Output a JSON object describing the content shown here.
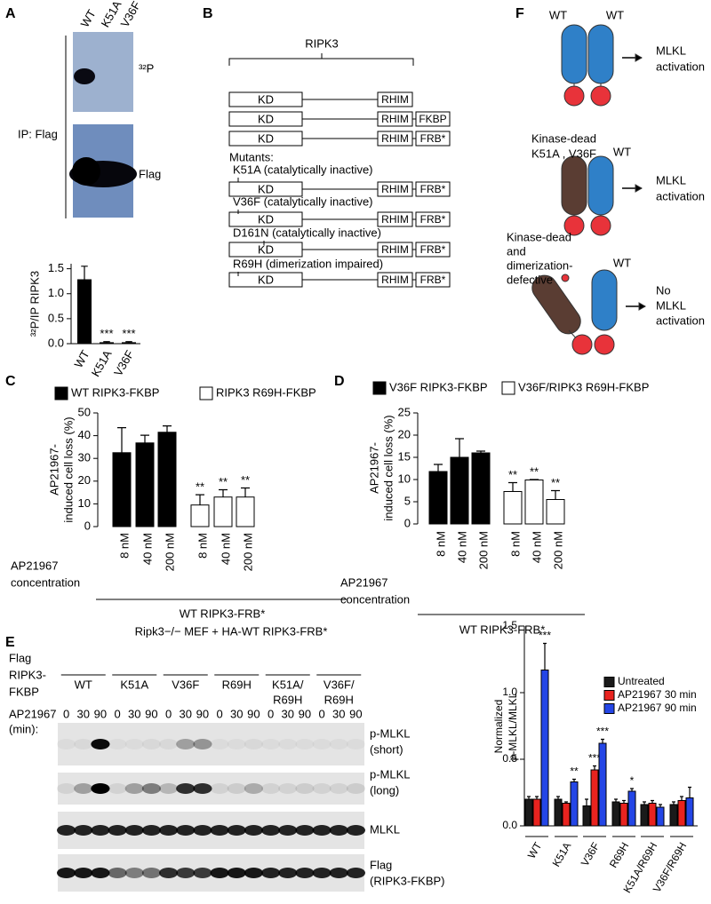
{
  "panel_labels": [
    "A",
    "B",
    "C",
    "D",
    "E",
    "F"
  ],
  "panel_a": {
    "lanes": [
      "WT",
      "K51A",
      "V36F"
    ],
    "bands": [
      "³²P",
      "Flag"
    ],
    "ip_label": "IP: Flag"
  },
  "panel_b": {
    "bracket": "RIPK3",
    "kd": "KD",
    "rhim": "RHIM",
    "tags": [
      "FKBP",
      "FRB*"
    ],
    "mutants_heading": "Mutants:",
    "mutants": [
      "K51A (catalytically inactive)",
      "V36F (catalytically inactive)",
      "D161N (catalytically inactive)",
      "R69H (dimerization impaired)"
    ]
  },
  "panel_e_blot": {
    "header": "Ripk3−/− MEF + HA-WT RIPK3-FRB*",
    "row_label": [
      "Flag",
      "RIPK3-",
      "FKBP"
    ],
    "groups": [
      [
        "WT"
      ],
      [
        "K51A"
      ],
      [
        "V36F"
      ],
      [
        "R69H"
      ],
      [
        "K51A/",
        "R69H"
      ],
      [
        "V36F/",
        "R69H"
      ]
    ],
    "time_label": [
      "AP21967",
      "(min):"
    ],
    "times": [
      "0",
      "30",
      "90"
    ],
    "bands": [
      [
        "p-MLKL",
        "(short)"
      ],
      [
        "p-MLKL",
        "(long)"
      ],
      [
        "MLKL"
      ],
      [
        "Flag",
        "(RIPK3-FKBP)"
      ]
    ]
  },
  "panel_f": {
    "states": [
      {
        "left": [
          "WT"
        ],
        "right": "WT",
        "result": [
          "MLKL",
          "activation"
        ]
      },
      {
        "left": [
          "Kinase-dead",
          "K51A , V36F"
        ],
        "right": "WT",
        "result": [
          "MLKL",
          "activation"
        ]
      },
      {
        "left": [
          "Kinase-dead",
          "and",
          "dimerization-",
          "defective"
        ],
        "right": "WT",
        "result": [
          "No",
          "MLKL",
          "activation"
        ]
      }
    ]
  },
  "chart_data": [
    {
      "type": "bar",
      "ylabel": "³²P/IP RIPK3",
      "categories": [
        "WT",
        "K51A",
        "V36F"
      ],
      "values": [
        1.28,
        0.02,
        0.02
      ],
      "errors": [
        0.27,
        0.02,
        0.02
      ],
      "annotations": [
        null,
        "***",
        "***"
      ],
      "color": "#000000",
      "ylim": [
        0,
        1.6
      ],
      "yticks": [
        {
          "value": 0,
          "label": "0.0"
        },
        {
          "value": 0.5,
          "label": "0.5"
        },
        {
          "value": 1,
          "label": "1.0"
        },
        {
          "value": 1.5,
          "label": "1.5"
        }
      ]
    },
    {
      "type": "bar",
      "legend": "top",
      "ylabel": [
        "AP21967-",
        "induced cell loss (%)"
      ],
      "xlabel": [
        "AP21967",
        "concentration"
      ],
      "group_label": "WT RIPK3-FRB*",
      "categories": [
        "8 nM",
        "40 nM",
        "200 nM",
        "8 nM",
        "40 nM",
        "200 nM"
      ],
      "series": [
        {
          "name": "WT RIPK3-FKBP",
          "color": "#000000",
          "values": [
            32.5,
            36.8,
            41.5,
            null,
            null,
            null
          ],
          "errors": [
            11,
            3.4,
            2.8,
            null,
            null,
            null
          ],
          "annotations": [
            null,
            null,
            null,
            null,
            null,
            null
          ]
        },
        {
          "name": "RIPK3 R69H-FKBP",
          "color": "#ffffff",
          "values": [
            null,
            null,
            null,
            9.5,
            13,
            13
          ],
          "errors": [
            null,
            null,
            null,
            4.5,
            3.2,
            4
          ],
          "annotations": [
            null,
            null,
            null,
            "**",
            "**",
            "**"
          ]
        }
      ],
      "ylim": [
        0,
        50
      ],
      "yticks": [
        0,
        10,
        20,
        30,
        40,
        50
      ]
    },
    {
      "type": "bar",
      "legend": "top",
      "ylabel": [
        "AP21967-",
        "induced cell loss (%)"
      ],
      "xlabel": [
        "AP21967",
        "concentration"
      ],
      "group_label": "WT RIPK3-FRB*",
      "categories": [
        "8 nM",
        "40 nM",
        "200 nM",
        "8 nM",
        "40 nM",
        "200 nM"
      ],
      "series": [
        {
          "name": "V36F RIPK3-FKBP",
          "color": "#000000",
          "values": [
            11.8,
            15,
            16,
            null,
            null,
            null
          ],
          "errors": [
            1.6,
            4.2,
            0.4,
            null,
            null,
            null
          ],
          "annotations": [
            null,
            null,
            null,
            null,
            null,
            null
          ]
        },
        {
          "name": "V36F/RIPK3 R69H-FKBP",
          "color": "#ffffff",
          "values": [
            null,
            null,
            null,
            7.3,
            9.9,
            5.5
          ],
          "errors": [
            null,
            null,
            null,
            2,
            0.1,
            2
          ],
          "annotations": [
            null,
            null,
            null,
            "**",
            "**",
            "**"
          ]
        }
      ],
      "ylim": [
        0,
        25
      ],
      "yticks": [
        0,
        5,
        10,
        15,
        20,
        25
      ]
    },
    {
      "type": "bar",
      "legend": "right",
      "ylabel": [
        "Normalized",
        "p-MLKL/MLKL"
      ],
      "categories": [
        "WT",
        "K51A",
        "V36F",
        "R69H",
        "K51A/R69H",
        "V36F/R69H"
      ],
      "series": [
        {
          "name": "Untreated",
          "color": "#1a1a1a",
          "values": [
            0.2,
            0.2,
            0.15,
            0.18,
            0.16,
            0.16
          ],
          "errors": [
            0.02,
            0.02,
            0.05,
            0.02,
            0.02,
            0.02
          ],
          "annotations": [
            null,
            null,
            null,
            null,
            null,
            null
          ]
        },
        {
          "name": "AP21967 30 min",
          "color": "#e8231f",
          "values": [
            0.2,
            0.17,
            0.42,
            0.17,
            0.17,
            0.19
          ],
          "errors": [
            0.02,
            0.01,
            0.03,
            0.02,
            0.02,
            0.03
          ],
          "annotations": [
            null,
            null,
            "***",
            null,
            null,
            null
          ]
        },
        {
          "name": "AP21967 90 min",
          "color": "#2446e6",
          "values": [
            1.17,
            0.33,
            0.62,
            0.26,
            0.14,
            0.21
          ],
          "errors": [
            0.2,
            0.02,
            0.03,
            0.02,
            0.02,
            0.08
          ],
          "annotations": [
            "***",
            "**",
            "***",
            "*",
            null,
            null
          ]
        }
      ],
      "ylim": [
        0,
        1.5
      ],
      "yticks": [
        {
          "value": 0,
          "label": "0.0"
        },
        {
          "value": 0.5,
          "label": "0.5"
        },
        {
          "value": 1,
          "label": "1.0"
        },
        {
          "value": 1.5,
          "label": "1.5"
        }
      ]
    }
  ]
}
